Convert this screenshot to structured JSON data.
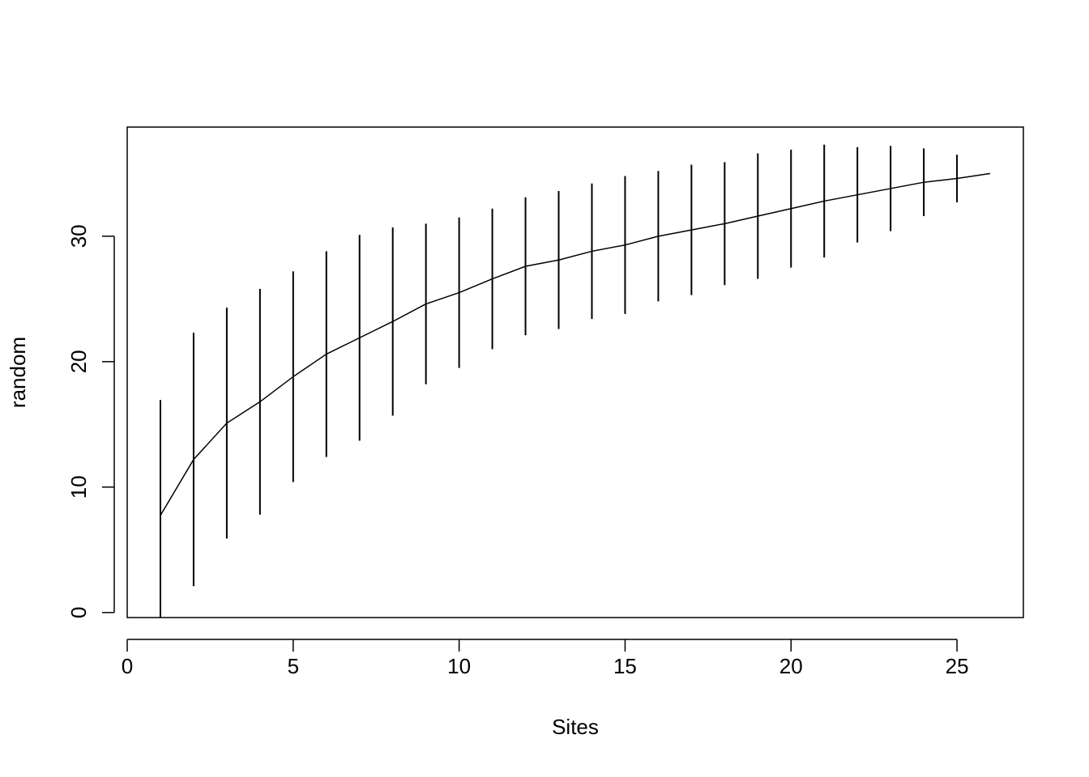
{
  "chart_data": {
    "type": "errorline",
    "x_label": "Sites",
    "y_label": "random",
    "x": [
      1,
      2,
      3,
      4,
      5,
      6,
      7,
      8,
      9,
      10,
      11,
      12,
      13,
      14,
      15,
      16,
      17,
      18,
      19,
      20,
      21,
      22,
      23,
      24,
      25,
      26
    ],
    "values": [
      7.74,
      12.2,
      15.1,
      16.8,
      18.8,
      20.6,
      21.9,
      23.2,
      24.6,
      25.5,
      26.6,
      27.6,
      28.1,
      28.8,
      29.3,
      30.0,
      30.5,
      31.0,
      31.6,
      32.2,
      32.8,
      33.3,
      33.8,
      34.3,
      34.6,
      35.0
    ],
    "errors": [
      9.2,
      10.1,
      9.2,
      9.0,
      8.4,
      8.2,
      8.2,
      7.5,
      6.4,
      6.0,
      5.6,
      5.5,
      5.5,
      5.4,
      5.5,
      5.2,
      5.2,
      4.9,
      5.0,
      4.7,
      4.5,
      3.8,
      3.4,
      2.7,
      1.9,
      0
    ],
    "color": "#000000",
    "xlim": [
      0,
      27
    ],
    "ylim": [
      -0.4,
      38.7
    ],
    "xticks": [
      0,
      5,
      10,
      15,
      20,
      25
    ],
    "yticks": [
      0,
      10,
      20,
      30
    ]
  }
}
